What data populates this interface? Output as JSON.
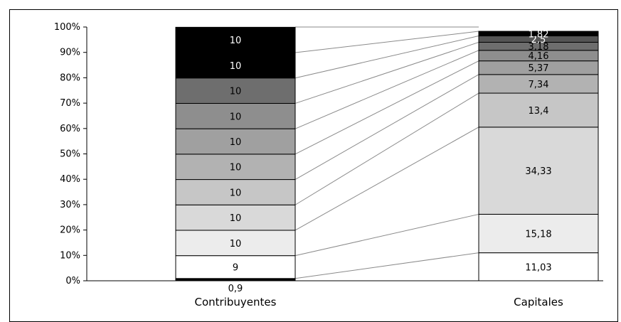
{
  "chart_data": {
    "type": "bar",
    "stacked": "percent",
    "categories": [
      "Contribuyentes",
      "Capitales"
    ],
    "ylim": [
      0,
      100
    ],
    "yticks": [
      "0%",
      "10%",
      "20%",
      "30%",
      "40%",
      "50%",
      "60%",
      "70%",
      "80%",
      "90%",
      "100%"
    ],
    "segment_colors": [
      "#000000",
      "#ffffff",
      "#ececec",
      "#d9d9d9",
      "#c6c6c6",
      "#b2b2b2",
      "#a0a0a0",
      "#8e8e8e",
      "#6e6e6e",
      "#000000",
      "#000000",
      "#000000"
    ],
    "right_colors": [
      "#ffffff",
      "#ececec",
      "#d9d9d9",
      "#c6c6c6",
      "#b2b2b2",
      "#a0a0a0",
      "#8e8e8e",
      "#6e6e6e",
      "#555555",
      "#000000"
    ],
    "left_segments": [
      {
        "value": 0.9,
        "label": "0,9"
      },
      {
        "value": 9,
        "label": "9"
      },
      {
        "value": 10,
        "label": "10"
      },
      {
        "value": 10,
        "label": "10"
      },
      {
        "value": 10,
        "label": "10"
      },
      {
        "value": 10,
        "label": "10"
      },
      {
        "value": 10,
        "label": "10"
      },
      {
        "value": 10,
        "label": "10"
      },
      {
        "value": 10,
        "label": "10"
      },
      {
        "value": 10,
        "label": "10"
      },
      {
        "value": 10,
        "label": "10"
      }
    ],
    "right_segments": [
      {
        "value": 11.03,
        "label": "11,03"
      },
      {
        "value": 15.18,
        "label": "15,18"
      },
      {
        "value": 34.33,
        "label": "34,33"
      },
      {
        "value": 13.4,
        "label": "13,4"
      },
      {
        "value": 7.34,
        "label": "7,34"
      },
      {
        "value": 5.37,
        "label": "5,37"
      },
      {
        "value": 4.16,
        "label": "4,16"
      },
      {
        "value": 3.18,
        "label": "3,18"
      },
      {
        "value": 2.5,
        "label": "2,5"
      },
      {
        "value": 1.82,
        "label": "1,82"
      }
    ],
    "connectors": true,
    "grid": false,
    "legend": "none"
  }
}
